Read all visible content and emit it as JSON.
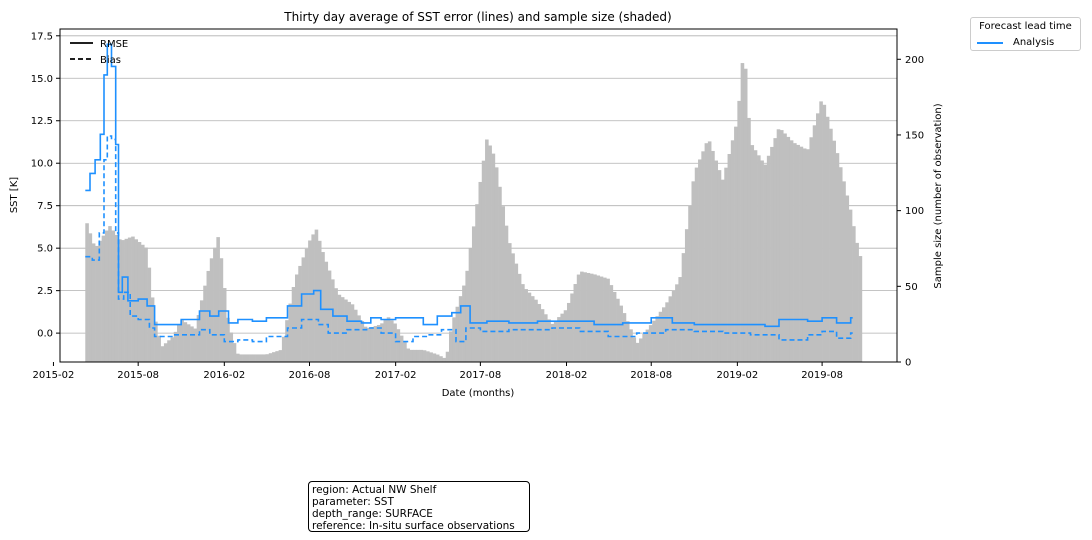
{
  "chart_data": {
    "type": "line",
    "title": "Thirty day average of SST error (lines) and sample size (shaded)",
    "xlabel": "Date (months)",
    "ylabel": "SST [K]",
    "ylabel_right": "Sample size (number of observation)",
    "ylim": [
      -1.7,
      17.9
    ],
    "ylim_right": [
      0,
      220
    ],
    "xlim": [
      "2015-02-15",
      "2020-01-08"
    ],
    "grid": "horizontal",
    "x_tick_labels": [
      "2015-02",
      "2015-08",
      "2016-02",
      "2016-08",
      "2017-02",
      "2017-08",
      "2018-02",
      "2018-08",
      "2019-02",
      "2019-08"
    ],
    "y_tick_labels": [
      "0.0",
      "2.5",
      "5.0",
      "7.5",
      "10.0",
      "12.5",
      "15.0",
      "17.5"
    ],
    "y_right_tick_labels": [
      "0",
      "50",
      "100",
      "150",
      "200"
    ],
    "line_style_legend": {
      "rmse": "RMSE",
      "bias": "Bias",
      "placement": "upper-left"
    },
    "series_legend": {
      "title": "Forecast lead time",
      "entries": [
        "Analysis"
      ],
      "placement": "outside-top-right"
    },
    "colors": {
      "series": "#1e90ff",
      "bars": "#bfbfbf",
      "grid": "#b0b0b0"
    },
    "series": [
      {
        "name": "Analysis",
        "metric": "RMSE",
        "line": "solid",
        "points": [
          [
            "2015-04-10",
            8.4
          ],
          [
            "2015-04-20",
            9.4
          ],
          [
            "2015-05-01",
            10.2
          ],
          [
            "2015-05-12",
            11.7
          ],
          [
            "2015-05-20",
            15.2
          ],
          [
            "2015-05-27",
            17.0
          ],
          [
            "2015-06-05",
            15.7
          ],
          [
            "2015-06-14",
            11.1
          ],
          [
            "2015-06-20",
            2.4
          ],
          [
            "2015-06-28",
            3.3
          ],
          [
            "2015-07-10",
            1.9
          ],
          [
            "2015-08-01",
            2.0
          ],
          [
            "2015-08-20",
            1.6
          ],
          [
            "2015-09-05",
            0.5
          ],
          [
            "2015-10-01",
            0.5
          ],
          [
            "2015-11-01",
            0.8
          ],
          [
            "2015-12-10",
            1.3
          ],
          [
            "2016-01-01",
            1.0
          ],
          [
            "2016-01-20",
            1.3
          ],
          [
            "2016-02-10",
            0.6
          ],
          [
            "2016-03-01",
            0.8
          ],
          [
            "2016-04-01",
            0.7
          ],
          [
            "2016-05-01",
            0.9
          ],
          [
            "2016-06-15",
            1.6
          ],
          [
            "2016-07-15",
            2.3
          ],
          [
            "2016-08-10",
            2.5
          ],
          [
            "2016-08-25",
            1.4
          ],
          [
            "2016-09-20",
            1.0
          ],
          [
            "2016-10-20",
            0.7
          ],
          [
            "2016-11-20",
            0.6
          ],
          [
            "2016-12-10",
            0.9
          ],
          [
            "2017-01-01",
            0.8
          ],
          [
            "2017-02-01",
            0.9
          ],
          [
            "2017-03-10",
            0.9
          ],
          [
            "2017-04-01",
            0.5
          ],
          [
            "2017-05-01",
            1.0
          ],
          [
            "2017-06-01",
            1.2
          ],
          [
            "2017-06-20",
            1.6
          ],
          [
            "2017-07-10",
            0.6
          ],
          [
            "2017-08-15",
            0.7
          ],
          [
            "2017-10-01",
            0.6
          ],
          [
            "2017-12-01",
            0.7
          ],
          [
            "2018-02-01",
            0.7
          ],
          [
            "2018-04-01",
            0.5
          ],
          [
            "2018-06-01",
            0.6
          ],
          [
            "2018-08-01",
            0.9
          ],
          [
            "2018-09-15",
            0.6
          ],
          [
            "2018-11-01",
            0.5
          ],
          [
            "2019-01-01",
            0.5
          ],
          [
            "2019-03-01",
            0.5
          ],
          [
            "2019-04-01",
            0.4
          ],
          [
            "2019-05-01",
            0.8
          ],
          [
            "2019-07-01",
            0.7
          ],
          [
            "2019-08-01",
            0.9
          ],
          [
            "2019-09-01",
            0.6
          ],
          [
            "2019-10-01",
            0.9
          ]
        ]
      },
      {
        "name": "Analysis",
        "metric": "Bias",
        "line": "dashed",
        "points": [
          [
            "2015-04-10",
            4.5
          ],
          [
            "2015-04-25",
            4.3
          ],
          [
            "2015-05-10",
            5.9
          ],
          [
            "2015-05-20",
            10.2
          ],
          [
            "2015-05-27",
            11.6
          ],
          [
            "2015-06-05",
            11.4
          ],
          [
            "2015-06-14",
            5.9
          ],
          [
            "2015-06-20",
            2.0
          ],
          [
            "2015-07-01",
            2.4
          ],
          [
            "2015-07-15",
            1.0
          ],
          [
            "2015-08-01",
            0.8
          ],
          [
            "2015-08-25",
            0.3
          ],
          [
            "2015-09-05",
            -0.2
          ],
          [
            "2015-10-15",
            -0.1
          ],
          [
            "2015-12-10",
            0.2
          ],
          [
            "2016-01-01",
            -0.1
          ],
          [
            "2016-02-01",
            -0.5
          ],
          [
            "2016-03-01",
            -0.4
          ],
          [
            "2016-04-01",
            -0.5
          ],
          [
            "2016-05-01",
            -0.2
          ],
          [
            "2016-06-15",
            0.3
          ],
          [
            "2016-07-15",
            0.8
          ],
          [
            "2016-08-20",
            0.5
          ],
          [
            "2016-09-10",
            0.0
          ],
          [
            "2016-10-20",
            0.2
          ],
          [
            "2016-12-01",
            0.3
          ],
          [
            "2017-01-01",
            0.0
          ],
          [
            "2017-02-01",
            -0.5
          ],
          [
            "2017-03-10",
            -0.2
          ],
          [
            "2017-04-10",
            -0.1
          ],
          [
            "2017-05-10",
            0.2
          ],
          [
            "2017-06-10",
            -0.5
          ],
          [
            "2017-07-01",
            0.3
          ],
          [
            "2017-08-01",
            0.1
          ],
          [
            "2017-10-01",
            0.2
          ],
          [
            "2018-01-01",
            0.3
          ],
          [
            "2018-03-01",
            0.1
          ],
          [
            "2018-05-01",
            -0.2
          ],
          [
            "2018-07-01",
            0.0
          ],
          [
            "2018-09-01",
            0.2
          ],
          [
            "2018-11-01",
            0.1
          ],
          [
            "2019-01-01",
            0.0
          ],
          [
            "2019-03-01",
            -0.1
          ],
          [
            "2019-05-01",
            -0.4
          ],
          [
            "2019-07-01",
            -0.1
          ],
          [
            "2019-08-01",
            0.1
          ],
          [
            "2019-09-01",
            -0.3
          ],
          [
            "2019-10-01",
            0.0
          ]
        ]
      }
    ],
    "sample_size": {
      "label": "Sample size (number of observation)",
      "points": [
        [
          "2015-04-10",
          95
        ],
        [
          "2015-05-01",
          75
        ],
        [
          "2015-06-01",
          90
        ],
        [
          "2015-06-25",
          80
        ],
        [
          "2015-07-20",
          83
        ],
        [
          "2015-08-20",
          75
        ],
        [
          "2015-09-05",
          30
        ],
        [
          "2015-09-20",
          10
        ],
        [
          "2015-10-15",
          17
        ],
        [
          "2015-11-01",
          28
        ],
        [
          "2015-12-01",
          22
        ],
        [
          "2016-01-01",
          65
        ],
        [
          "2016-01-20",
          84
        ],
        [
          "2016-02-10",
          25
        ],
        [
          "2016-03-01",
          5
        ],
        [
          "2016-04-01",
          5
        ],
        [
          "2016-05-01",
          5
        ],
        [
          "2016-06-01",
          8
        ],
        [
          "2016-06-15",
          30
        ],
        [
          "2016-07-01",
          55
        ],
        [
          "2016-08-01",
          80
        ],
        [
          "2016-08-15",
          88
        ],
        [
          "2016-09-01",
          70
        ],
        [
          "2016-10-01",
          45
        ],
        [
          "2016-11-01",
          38
        ],
        [
          "2016-12-01",
          22
        ],
        [
          "2017-01-01",
          25
        ],
        [
          "2017-01-15",
          30
        ],
        [
          "2017-02-01",
          25
        ],
        [
          "2017-03-01",
          8
        ],
        [
          "2017-04-01",
          8
        ],
        [
          "2017-05-01",
          5
        ],
        [
          "2017-05-20",
          2
        ],
        [
          "2017-06-01",
          25
        ],
        [
          "2017-07-01",
          55
        ],
        [
          "2017-08-01",
          120
        ],
        [
          "2017-08-15",
          148
        ],
        [
          "2017-09-01",
          135
        ],
        [
          "2017-10-01",
          80
        ],
        [
          "2017-11-01",
          50
        ],
        [
          "2017-12-01",
          40
        ],
        [
          "2018-01-01",
          25
        ],
        [
          "2018-02-01",
          35
        ],
        [
          "2018-03-01",
          60
        ],
        [
          "2018-04-01",
          58
        ],
        [
          "2018-05-01",
          55
        ],
        [
          "2018-06-01",
          35
        ],
        [
          "2018-07-01",
          12
        ],
        [
          "2018-08-01",
          25
        ],
        [
          "2018-09-01",
          38
        ],
        [
          "2018-10-01",
          55
        ],
        [
          "2018-11-01",
          125
        ],
        [
          "2018-12-01",
          148
        ],
        [
          "2019-01-01",
          120
        ],
        [
          "2019-02-01",
          160
        ],
        [
          "2019-02-15",
          210
        ],
        [
          "2019-03-01",
          145
        ],
        [
          "2019-04-01",
          130
        ],
        [
          "2019-05-01",
          155
        ],
        [
          "2019-06-01",
          145
        ],
        [
          "2019-07-01",
          140
        ],
        [
          "2019-08-01",
          175
        ],
        [
          "2019-09-01",
          140
        ],
        [
          "2019-10-01",
          100
        ],
        [
          "2019-10-20",
          70
        ]
      ]
    }
  },
  "info_box": {
    "region": "region: Actual NW Shelf",
    "parameter": "parameter: SST",
    "depth_range": "depth_range: SURFACE",
    "reference": "reference: In-situ surface observations"
  }
}
